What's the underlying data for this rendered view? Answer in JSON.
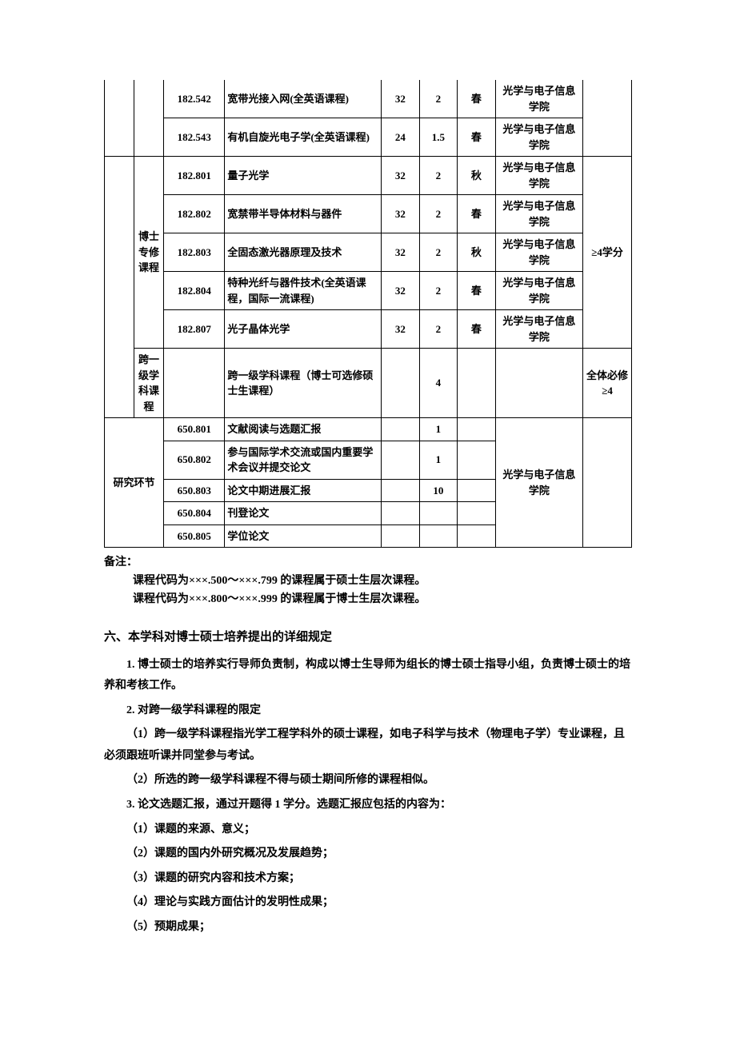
{
  "table": {
    "group1": {
      "rows": [
        {
          "code": "182.542",
          "name": "宽带光接入网(全英语课程)",
          "hours": "32",
          "credits": "2",
          "sem": "春",
          "dept": "光学与电子信息学院"
        },
        {
          "code": "182.543",
          "name": "有机自旋光电子学(全英语课程)",
          "hours": "24",
          "credits": "1.5",
          "sem": "春",
          "dept": "光学与电子信息学院"
        }
      ]
    },
    "group2": {
      "cat": "博士专修课程",
      "req": "≥4学分",
      "rows": [
        {
          "code": "182.801",
          "name": "量子光学",
          "hours": "32",
          "credits": "2",
          "sem": "秋",
          "dept": "光学与电子信息学院"
        },
        {
          "code": "182.802",
          "name": "宽禁带半导体材料与器件",
          "hours": "32",
          "credits": "2",
          "sem": "春",
          "dept": "光学与电子信息学院"
        },
        {
          "code": "182.803",
          "name": "全固态激光器原理及技术",
          "hours": "32",
          "credits": "2",
          "sem": "秋",
          "dept": "光学与电子信息学院"
        },
        {
          "code": "182.804",
          "name": "特种光纤与器件技术(全英语课程，国际一流课程)",
          "hours": "32",
          "credits": "2",
          "sem": "春",
          "dept": "光学与电子信息学院"
        },
        {
          "code": "182.807",
          "name": "光子晶体光学",
          "hours": "32",
          "credits": "2",
          "sem": "春",
          "dept": "光学与电子信息学院"
        }
      ]
    },
    "group3": {
      "cat": "跨一级学科课程",
      "name": "跨一级学科课程（博士可选修硕士生课程）",
      "credits": "4",
      "req": "全体必修≥4"
    },
    "env": {
      "label": "研究环节",
      "dept": "光学与电子信息学院",
      "rows": [
        {
          "code": "650.801",
          "name": "文献阅读与选题汇报",
          "credits": "1"
        },
        {
          "code": "650.802",
          "name": "参与国际学术交流或国内重要学术会议并提交论文",
          "credits": "1"
        },
        {
          "code": "650.803",
          "name": "论文中期进展汇报",
          "credits": "10"
        },
        {
          "code": "650.804",
          "name": "刊登论文",
          "credits": ""
        },
        {
          "code": "650.805",
          "name": "学位论文",
          "credits": ""
        }
      ]
    }
  },
  "notes": {
    "label": "备注：",
    "lines": [
      "课程代码为×××.500～×××.799 的课程属于硕士生层次课程。",
      "课程代码为×××.800～×××.999 的课程属于博士生层次课程。"
    ]
  },
  "section_title": "六、本学科对博士硕士培养提出的详细规定",
  "paras": [
    "1. 博士硕士的培养实行导师负责制，构成以博士生导师为组长的博士硕士指导小组，负责博士硕士的培养和考核工作。",
    "2. 对跨一级学科课程的限定",
    "（1）跨一级学科课程指光学工程学科外的硕士课程，如电子科学与技术（物理电子学）专业课程，且必须跟班听课并同堂参与考试。",
    "（2）所选的跨一级学科课程不得与硕士期间所修的课程相似。",
    "3. 论文选题汇报，通过开题得 1 学分。选题汇报应包括的内容为：",
    "（1）课题的来源、意义；",
    "（2）课题的国内外研究概况及发展趋势；",
    "（3）课题的研究内容和技术方案；",
    "（4）理论与实践方面估计的发明性成果；",
    "（5）预期成果；"
  ]
}
